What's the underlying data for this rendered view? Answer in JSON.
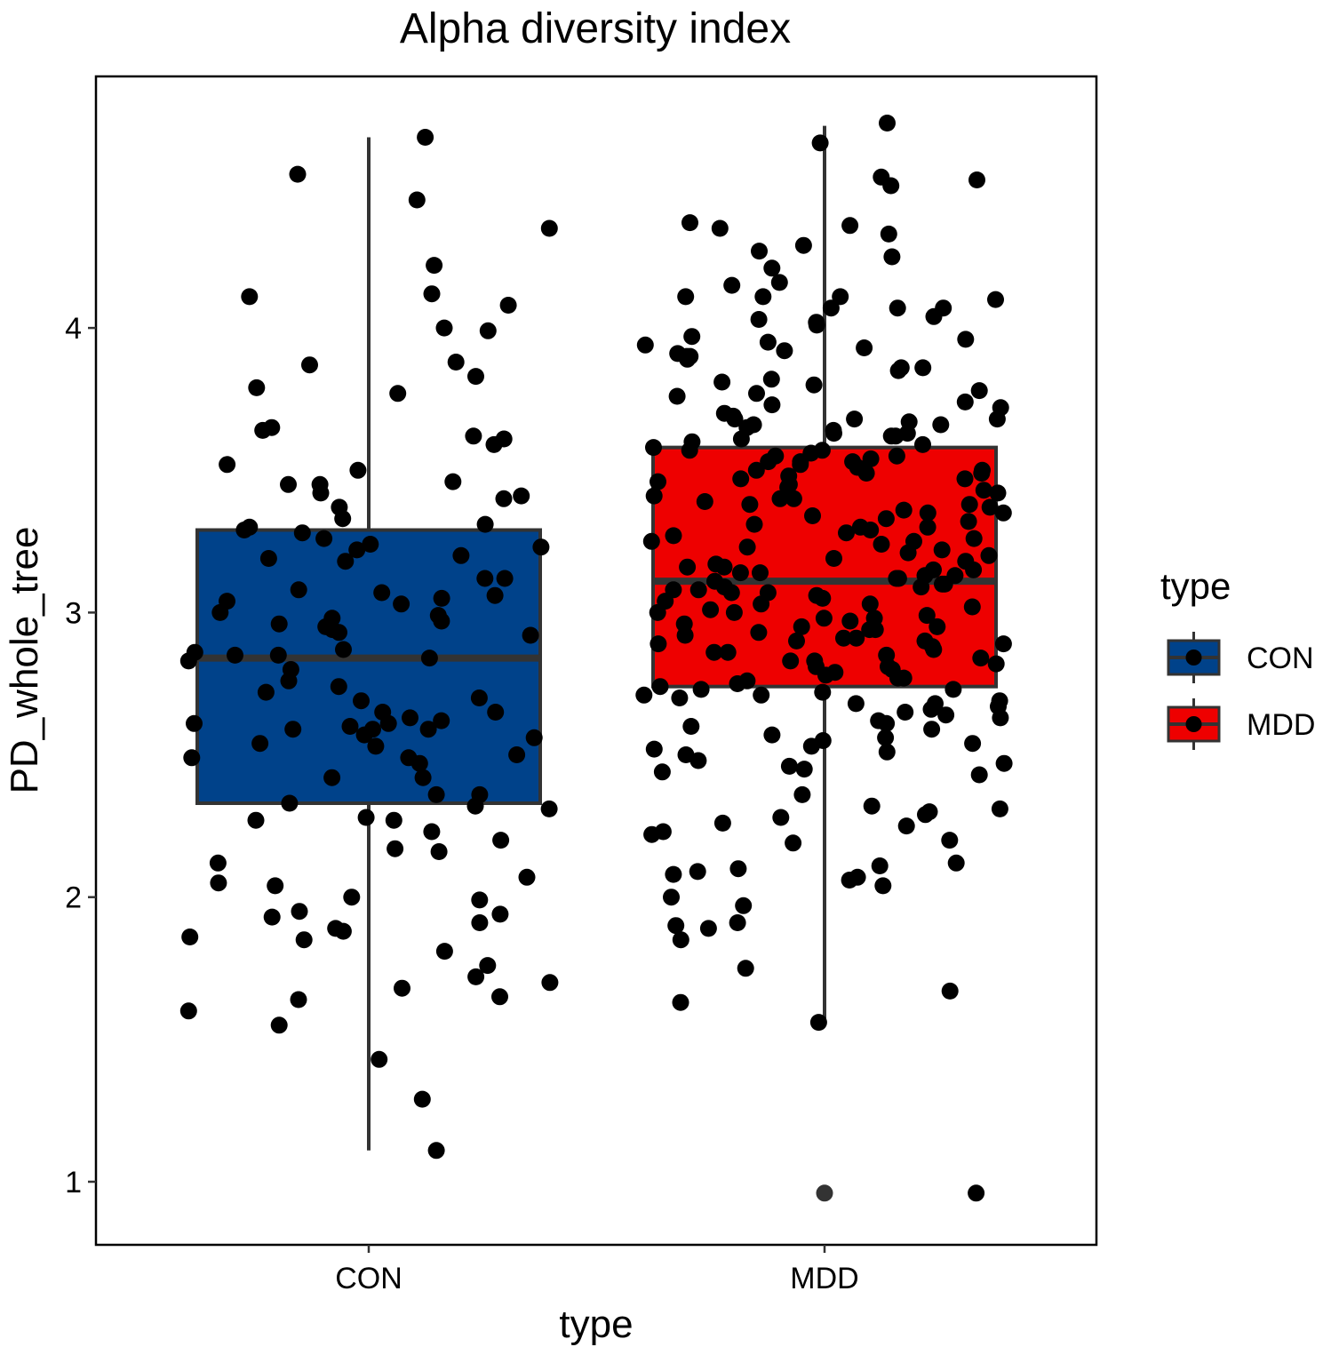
{
  "chart_data": {
    "type": "box",
    "title": "Alpha diversity index",
    "xlabel": "type",
    "ylabel": "PD_whole_tree",
    "categories": [
      "CON",
      "MDD"
    ],
    "ylim": [
      0.82,
      4.92
    ],
    "yticks": [
      1,
      2,
      3,
      4
    ],
    "grid": false,
    "legend": {
      "title": "type",
      "position": "right",
      "entries": [
        {
          "label": "CON",
          "color": "#00428a"
        },
        {
          "label": "MDD",
          "color": "#ee0000"
        }
      ]
    },
    "boxes": [
      {
        "name": "CON",
        "color": "#00428a",
        "whisker_low": 1.11,
        "q1": 2.33,
        "median": 2.84,
        "q3": 3.29,
        "whisker_high": 4.67,
        "outliers": []
      },
      {
        "name": "MDD",
        "color": "#ee0000",
        "whisker_low": 1.55,
        "q1": 2.74,
        "median": 3.11,
        "q3": 3.58,
        "whisker_high": 4.71,
        "outliers": [
          0.96
        ]
      }
    ],
    "points": {
      "CON": [
        4.67,
        4.54,
        4.45,
        4.35,
        4.22,
        4.12,
        4.11,
        4.08,
        4.0,
        3.99,
        3.88,
        3.87,
        3.83,
        3.79,
        3.77,
        3.65,
        3.64,
        3.62,
        3.61,
        3.59,
        3.52,
        3.5,
        3.46,
        3.45,
        3.45,
        3.42,
        3.41,
        3.4,
        3.37,
        3.33,
        3.31,
        3.3,
        3.29,
        3.28,
        3.26,
        3.24,
        3.23,
        3.22,
        3.2,
        3.19,
        3.18,
        3.12,
        3.12,
        3.08,
        3.07,
        3.06,
        3.05,
        3.04,
        3.03,
        3.0,
        2.99,
        2.98,
        2.97,
        2.96,
        2.95,
        2.94,
        2.93,
        2.92,
        2.87,
        2.86,
        2.85,
        2.85,
        2.84,
        2.83,
        2.8,
        2.76,
        2.74,
        2.72,
        2.7,
        2.69,
        2.65,
        2.65,
        2.63,
        2.62,
        2.61,
        2.61,
        2.6,
        2.59,
        2.59,
        2.59,
        2.57,
        2.56,
        2.54,
        2.53,
        2.5,
        2.49,
        2.49,
        2.47,
        2.42,
        2.42,
        2.36,
        2.36,
        2.33,
        2.32,
        2.31,
        2.28,
        2.27,
        2.27,
        2.23,
        2.2,
        2.17,
        2.16,
        2.12,
        2.07,
        2.05,
        2.04,
        2.0,
        1.99,
        1.95,
        1.94,
        1.93,
        1.91,
        1.89,
        1.88,
        1.86,
        1.85,
        1.81,
        1.76,
        1.72,
        1.7,
        1.68,
        1.65,
        1.64,
        1.6,
        1.55,
        1.43,
        1.29,
        1.11
      ],
      "MDD": [
        4.72,
        4.65,
        4.53,
        4.52,
        4.5,
        4.37,
        4.36,
        4.35,
        4.33,
        4.29,
        4.27,
        4.25,
        4.21,
        4.16,
        4.15,
        4.11,
        4.11,
        4.11,
        4.1,
        4.07,
        4.07,
        4.07,
        4.04,
        4.03,
        4.02,
        4.01,
        3.97,
        3.96,
        3.95,
        3.94,
        3.93,
        3.92,
        3.91,
        3.9,
        3.9,
        3.89,
        3.86,
        3.86,
        3.85,
        3.82,
        3.81,
        3.8,
        3.78,
        3.77,
        3.76,
        3.74,
        3.73,
        3.72,
        3.7,
        3.69,
        3.68,
        3.68,
        3.68,
        3.67,
        3.66,
        3.66,
        3.65,
        3.64,
        3.63,
        3.63,
        3.62,
        3.62,
        3.61,
        3.6,
        3.59,
        3.58,
        3.57,
        3.57,
        3.56,
        3.55,
        3.55,
        3.54,
        3.53,
        3.53,
        3.53,
        3.52,
        3.51,
        3.5,
        3.5,
        3.49,
        3.49,
        3.48,
        3.47,
        3.47,
        3.46,
        3.45,
        3.44,
        3.43,
        3.42,
        3.41,
        3.4,
        3.4,
        3.39,
        3.38,
        3.38,
        3.37,
        3.36,
        3.35,
        3.35,
        3.34,
        3.33,
        3.32,
        3.31,
        3.3,
        3.3,
        3.29,
        3.28,
        3.27,
        3.26,
        3.25,
        3.25,
        3.24,
        3.23,
        3.22,
        3.21,
        3.2,
        3.19,
        3.18,
        3.17,
        3.16,
        3.16,
        3.15,
        3.15,
        3.14,
        3.14,
        3.13,
        3.13,
        3.12,
        3.12,
        3.11,
        3.1,
        3.1,
        3.09,
        3.09,
        3.08,
        3.08,
        3.07,
        3.07,
        3.06,
        3.05,
        3.04,
        3.03,
        3.03,
        3.02,
        3.01,
        3.0,
        3.0,
        2.99,
        2.98,
        2.98,
        2.97,
        2.96,
        2.95,
        2.95,
        2.94,
        2.94,
        2.93,
        2.92,
        2.91,
        2.91,
        2.9,
        2.9,
        2.89,
        2.89,
        2.88,
        2.87,
        2.86,
        2.86,
        2.85,
        2.84,
        2.83,
        2.83,
        2.82,
        2.81,
        2.81,
        2.8,
        2.79,
        2.78,
        2.77,
        2.77,
        2.76,
        2.75,
        2.74,
        2.73,
        2.73,
        2.72,
        2.71,
        2.71,
        2.7,
        2.69,
        2.68,
        2.68,
        2.67,
        2.66,
        2.65,
        2.64,
        2.63,
        2.62,
        2.61,
        2.6,
        2.59,
        2.57,
        2.56,
        2.55,
        2.54,
        2.53,
        2.52,
        2.51,
        2.5,
        2.48,
        2.47,
        2.46,
        2.45,
        2.44,
        2.43,
        2.36,
        2.32,
        2.31,
        2.3,
        2.29,
        2.28,
        2.26,
        2.25,
        2.23,
        2.22,
        2.2,
        2.19,
        2.12,
        2.11,
        2.1,
        2.09,
        2.08,
        2.07,
        2.06,
        2.04,
        2.0,
        1.97,
        1.91,
        1.9,
        1.89,
        1.85,
        1.75,
        1.67,
        1.63,
        1.56,
        0.96
      ]
    }
  }
}
